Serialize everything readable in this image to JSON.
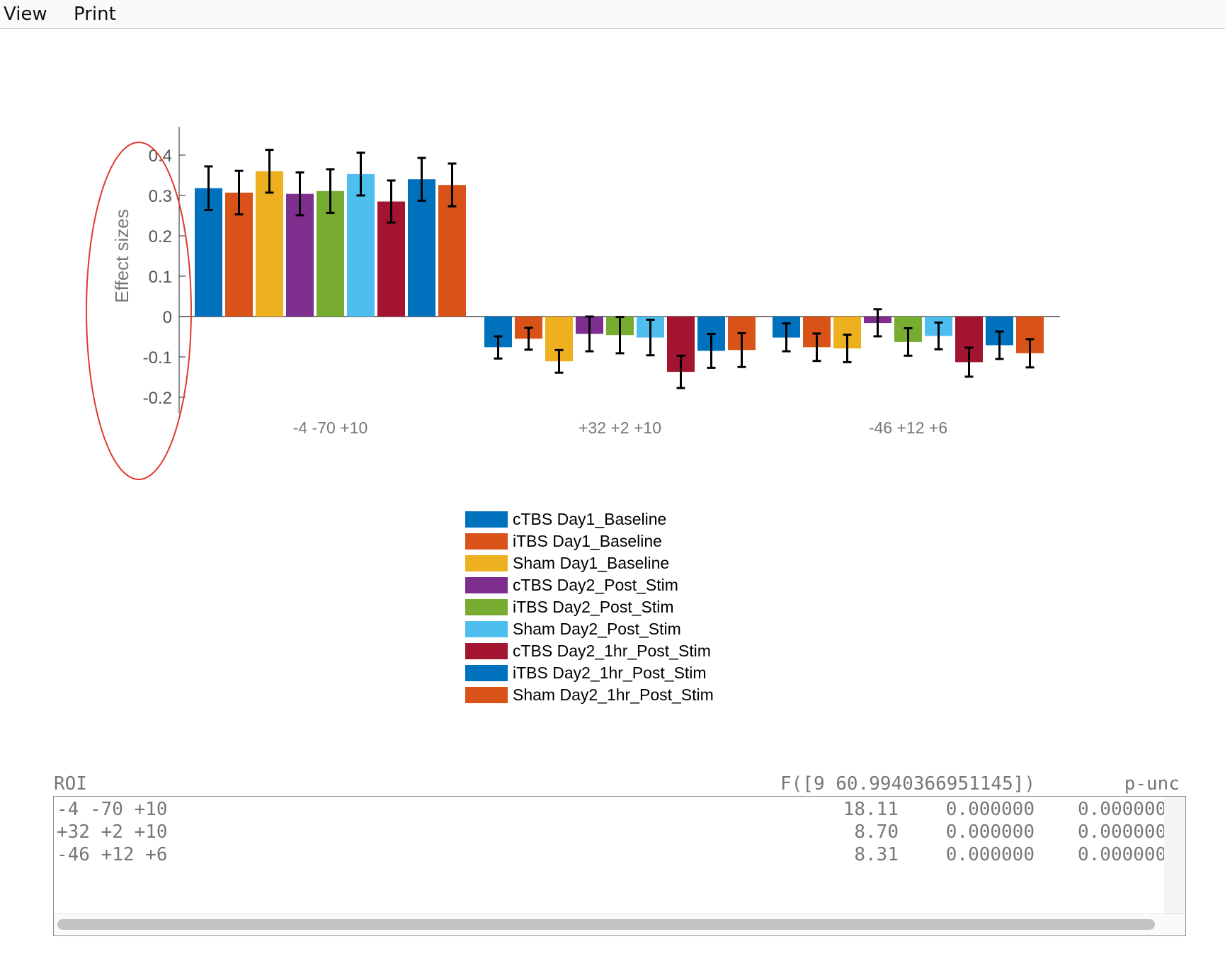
{
  "menu": {
    "view": "View",
    "print": "Print"
  },
  "chart_data": {
    "type": "bar",
    "ylabel": "Effect sizes",
    "xlabel": "",
    "ylim": [
      -0.24,
      0.47
    ],
    "yticks": [
      -0.2,
      -0.1,
      0,
      0.1,
      0.2,
      0.3,
      0.4
    ],
    "ytick_labels": [
      "-0.2",
      "-0.1",
      "0",
      "0.1",
      "0.2",
      "0.3",
      "0.4"
    ],
    "categories": [
      "-4 -70 +10",
      "+32 +2 +10",
      "-46 +12 +6"
    ],
    "legend_position": "bottom",
    "annotation": "red ellipse around y-axis",
    "series": [
      {
        "name": "cTBS Day1_Baseline",
        "color": "#0072BD",
        "values": [
          0.318,
          -0.076,
          -0.052
        ],
        "err_low": [
          0.264,
          -0.104,
          -0.086
        ],
        "err_high": [
          0.372,
          -0.049,
          -0.017
        ]
      },
      {
        "name": "iTBS Day1_Baseline",
        "color": "#D95319",
        "values": [
          0.307,
          -0.055,
          -0.076
        ],
        "err_low": [
          0.253,
          -0.082,
          -0.11
        ],
        "err_high": [
          0.361,
          -0.028,
          -0.042
        ]
      },
      {
        "name": "Sham Day1_Baseline",
        "color": "#EDB120",
        "values": [
          0.36,
          -0.111,
          -0.079
        ],
        "err_low": [
          0.307,
          -0.139,
          -0.113
        ],
        "err_high": [
          0.413,
          -0.083,
          -0.045
        ]
      },
      {
        "name": "cTBS Day2_Post_Stim",
        "color": "#7E2F8E",
        "values": [
          0.304,
          -0.043,
          -0.016
        ],
        "err_low": [
          0.251,
          -0.086,
          -0.049
        ],
        "err_high": [
          0.357,
          0.0,
          0.018
        ]
      },
      {
        "name": "iTBS Day2_Post_Stim",
        "color": "#77AC30",
        "values": [
          0.311,
          -0.046,
          -0.063
        ],
        "err_low": [
          0.257,
          -0.091,
          -0.097
        ],
        "err_high": [
          0.365,
          -0.001,
          -0.029
        ]
      },
      {
        "name": "Sham Day2_Post_Stim",
        "color": "#4DBEEE",
        "values": [
          0.353,
          -0.052,
          -0.048
        ],
        "err_low": [
          0.3,
          -0.096,
          -0.081
        ],
        "err_high": [
          0.406,
          -0.008,
          -0.015
        ]
      },
      {
        "name": "cTBS Day2_1hr_Post_Stim",
        "color": "#A2142F",
        "values": [
          0.285,
          -0.137,
          -0.113
        ],
        "err_low": [
          0.233,
          -0.177,
          -0.149
        ],
        "err_high": [
          0.337,
          -0.097,
          -0.077
        ]
      },
      {
        "name": "iTBS Day2_1hr_Post_Stim",
        "color": "#0072BD",
        "values": [
          0.34,
          -0.085,
          -0.071
        ],
        "err_low": [
          0.287,
          -0.127,
          -0.105
        ],
        "err_high": [
          0.393,
          -0.043,
          -0.037
        ]
      },
      {
        "name": "Sham Day2_1hr_Post_Stim",
        "color": "#D95319",
        "values": [
          0.326,
          -0.083,
          -0.091
        ],
        "err_low": [
          0.273,
          -0.125,
          -0.126
        ],
        "err_high": [
          0.379,
          -0.041,
          -0.056
        ]
      }
    ]
  },
  "stats": {
    "header": {
      "roi": "ROI",
      "f": "F([9 60.9940366951145])",
      "p": "p-unc"
    },
    "rows": [
      {
        "roi": "-4 -70 +10",
        "f": "18.11",
        "p1": "0.000000",
        "p2": "0.000000"
      },
      {
        "roi": "+32 +2 +10",
        "f": "8.70",
        "p1": "0.000000",
        "p2": "0.000000"
      },
      {
        "roi": "-46 +12 +6",
        "f": "8.31",
        "p1": "0.000000",
        "p2": "0.000000"
      }
    ]
  }
}
